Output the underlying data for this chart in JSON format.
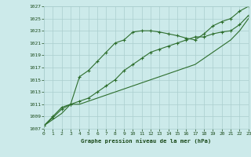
{
  "title": "Graphe pression niveau de la mer (hPa)",
  "x_values": [
    0,
    1,
    2,
    3,
    4,
    5,
    6,
    7,
    8,
    9,
    10,
    11,
    12,
    13,
    14,
    15,
    16,
    17,
    18,
    19,
    20,
    21,
    22,
    23
  ],
  "line1": [
    1007.5,
    1008.8,
    1010.2,
    1011.0,
    1015.5,
    1016.5,
    1018.0,
    1019.5,
    1021.0,
    1021.5,
    1022.8,
    1023.0,
    1023.0,
    1022.8,
    1022.5,
    1022.2,
    1021.8,
    1021.5,
    1022.5,
    1023.8,
    1024.5,
    1025.0,
    1026.2,
    1027.0
  ],
  "line2": [
    1007.5,
    1009.0,
    1010.5,
    1011.0,
    1011.5,
    1012.0,
    1013.0,
    1014.0,
    1015.0,
    1016.5,
    1017.5,
    1018.5,
    1019.5,
    1020.0,
    1020.5,
    1021.0,
    1021.5,
    1022.0,
    1022.0,
    1022.5,
    1022.8,
    1023.0,
    1024.0,
    1025.5
  ],
  "line3": [
    1007.5,
    1008.5,
    1009.5,
    1011.0,
    1011.0,
    1011.5,
    1012.0,
    1012.5,
    1013.0,
    1013.5,
    1014.0,
    1014.5,
    1015.0,
    1015.5,
    1016.0,
    1016.5,
    1017.0,
    1017.5,
    1018.5,
    1019.5,
    1020.5,
    1021.5,
    1023.0,
    1025.0
  ],
  "line_color": "#2d6e2d",
  "bg_color": "#cceaea",
  "grid_color": "#aacece",
  "text_color": "#1a4a1a",
  "ylim_min": 1007,
  "ylim_max": 1027,
  "ytick_step": 2,
  "xlim_min": 0,
  "xlim_max": 23
}
